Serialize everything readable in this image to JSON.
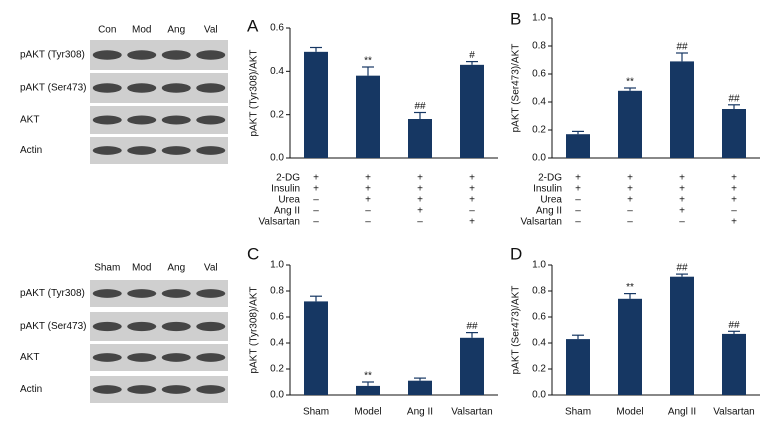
{
  "blots": [
    {
      "lanes": [
        "Con",
        "Mod",
        "Ang",
        "Val"
      ],
      "rows": [
        "pAKT (Tyr308)",
        "pAKT (Ser473)",
        "AKT",
        "Actin"
      ]
    },
    {
      "lanes": [
        "Sham",
        "Mod",
        "Ang",
        "Val"
      ],
      "rows": [
        "pAKT (Tyr308)",
        "pAKT (Ser473)",
        "AKT",
        "Actin"
      ]
    }
  ],
  "chart_data": [
    {
      "type": "bar",
      "panel": "A",
      "ylabel": "pAKT (Tyr308)/AKT",
      "color": "#163763",
      "values": [
        0.49,
        0.38,
        0.18,
        0.43
      ],
      "errors": [
        0.02,
        0.04,
        0.03,
        0.015
      ],
      "annotations": [
        null,
        "**",
        "##",
        "#"
      ],
      "ylim": [
        0,
        0.6
      ],
      "yticks": [
        {
          "value": 0,
          "label": "0.0"
        },
        0.2,
        0.4,
        0.6
      ],
      "conditions": [
        {
          "name": "2-DG",
          "signs": [
            "+",
            "+",
            "+",
            "+"
          ]
        },
        {
          "name": "Insulin",
          "signs": [
            "+",
            "+",
            "+",
            "+"
          ]
        },
        {
          "name": "Urea",
          "signs": [
            "–",
            "+",
            "+",
            "+"
          ]
        },
        {
          "name": "Ang II",
          "signs": [
            "–",
            "–",
            "+",
            "–"
          ]
        },
        {
          "name": "Valsartan",
          "signs": [
            "–",
            "–",
            "–",
            "+"
          ]
        }
      ]
    },
    {
      "type": "bar",
      "panel": "B",
      "ylabel": "pAKT (Ser473)/AKT",
      "color": "#163763",
      "values": [
        0.17,
        0.48,
        0.69,
        0.35
      ],
      "errors": [
        0.02,
        0.02,
        0.06,
        0.03
      ],
      "annotations": [
        null,
        "**",
        "##",
        "##"
      ],
      "ylim": [
        0,
        1
      ],
      "yticks": [
        {
          "value": 0,
          "label": "0.0"
        },
        0.2,
        0.4,
        0.6,
        0.8,
        {
          "value": 1,
          "label": "1.0"
        }
      ],
      "conditions": [
        {
          "name": "2-DG",
          "signs": [
            "+",
            "+",
            "+",
            "+"
          ]
        },
        {
          "name": "Insulin",
          "signs": [
            "+",
            "+",
            "+",
            "+"
          ]
        },
        {
          "name": "Urea",
          "signs": [
            "–",
            "+",
            "+",
            "+"
          ]
        },
        {
          "name": "Ang II",
          "signs": [
            "–",
            "–",
            "+",
            "–"
          ]
        },
        {
          "name": "Valsartan",
          "signs": [
            "–",
            "–",
            "–",
            "+"
          ]
        }
      ]
    },
    {
      "type": "bar",
      "panel": "C",
      "ylabel": "pAKT (Tyr308)/AKT",
      "color": "#163763",
      "categories": [
        "Sham",
        "Model",
        "Ang II",
        "Valsartan"
      ],
      "values": [
        0.72,
        0.07,
        0.11,
        0.44
      ],
      "errors": [
        0.04,
        0.03,
        0.02,
        0.04
      ],
      "annotations": [
        null,
        "**",
        null,
        "##"
      ],
      "ylim": [
        0,
        1
      ],
      "yticks": [
        {
          "value": 0,
          "label": "0.0"
        },
        0.2,
        0.4,
        0.6,
        0.8,
        {
          "value": 1,
          "label": "1.0"
        }
      ]
    },
    {
      "type": "bar",
      "panel": "D",
      "ylabel": "pAKT (Ser473)/AKT",
      "color": "#163763",
      "categories": [
        "Sham",
        "Model",
        "Angl II",
        "Valsartan"
      ],
      "values": [
        0.43,
        0.74,
        0.91,
        0.47
      ],
      "errors": [
        0.03,
        0.04,
        0.02,
        0.02
      ],
      "annotations": [
        null,
        "**",
        "##",
        "##"
      ],
      "ylim": [
        0,
        1
      ],
      "yticks": [
        {
          "value": 0,
          "label": "0.0"
        },
        0.2,
        0.4,
        0.6,
        0.8,
        {
          "value": 1,
          "label": "1.0"
        }
      ]
    }
  ]
}
